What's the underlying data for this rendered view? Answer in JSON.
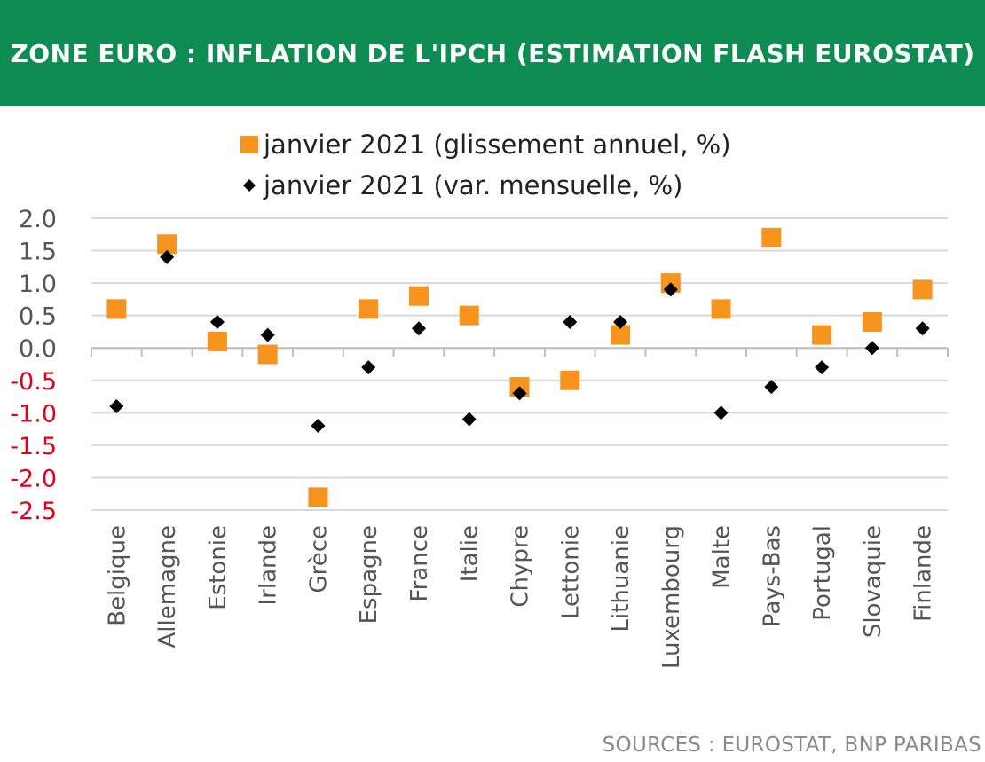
{
  "header": {
    "title": "ZONE EURO : INFLATION DE L'IPCH (ESTIMATION FLASH EUROSTAT)"
  },
  "source": "SOURCES : EUROSTAT, BNP PARIBAS",
  "colors": {
    "banner": "#0e8c53",
    "annual_marker": "#f7941d",
    "monthly_marker": "#000000",
    "negative_tick": "#e3001b",
    "positive_tick": "#555555",
    "grid": "#d9d9d9"
  },
  "chart_data": {
    "type": "scatter",
    "title": "",
    "xlabel": "",
    "ylabel": "",
    "ylim": [
      -2.5,
      2.0
    ],
    "yticks": [
      "2.0",
      "1.5",
      "1.0",
      "0.5",
      "0.0",
      "-0.5",
      "-1.0",
      "-1.5",
      "-2.0",
      "-2.5"
    ],
    "grid": true,
    "legend_position": "top-center",
    "categories": [
      "Belgique",
      "Allemagne",
      "Estonie",
      "Irlande",
      "Grèce",
      "Espagne",
      "France",
      "Italie",
      "Chypre",
      "Lettonie",
      "Lithuanie",
      "Luxembourg",
      "Malte",
      "Pays-Bas",
      "Portugal",
      "Slovaquie",
      "Finlande"
    ],
    "series": [
      {
        "name": "janvier 2021 (glissement annuel, %)",
        "marker": "square",
        "color": "#f7941d",
        "values": [
          0.6,
          1.6,
          0.1,
          -0.1,
          -2.3,
          0.6,
          0.8,
          0.5,
          -0.6,
          -0.5,
          0.2,
          1.0,
          0.6,
          1.7,
          0.2,
          0.4,
          0.9
        ]
      },
      {
        "name": "janvier 2021 (var. mensuelle, %)",
        "marker": "diamond",
        "color": "#000000",
        "values": [
          -0.9,
          1.4,
          0.4,
          0.2,
          -1.2,
          -0.3,
          0.3,
          -1.1,
          -0.7,
          0.4,
          0.4,
          0.9,
          -1.0,
          -0.6,
          -0.3,
          0.0,
          0.3
        ]
      }
    ]
  }
}
